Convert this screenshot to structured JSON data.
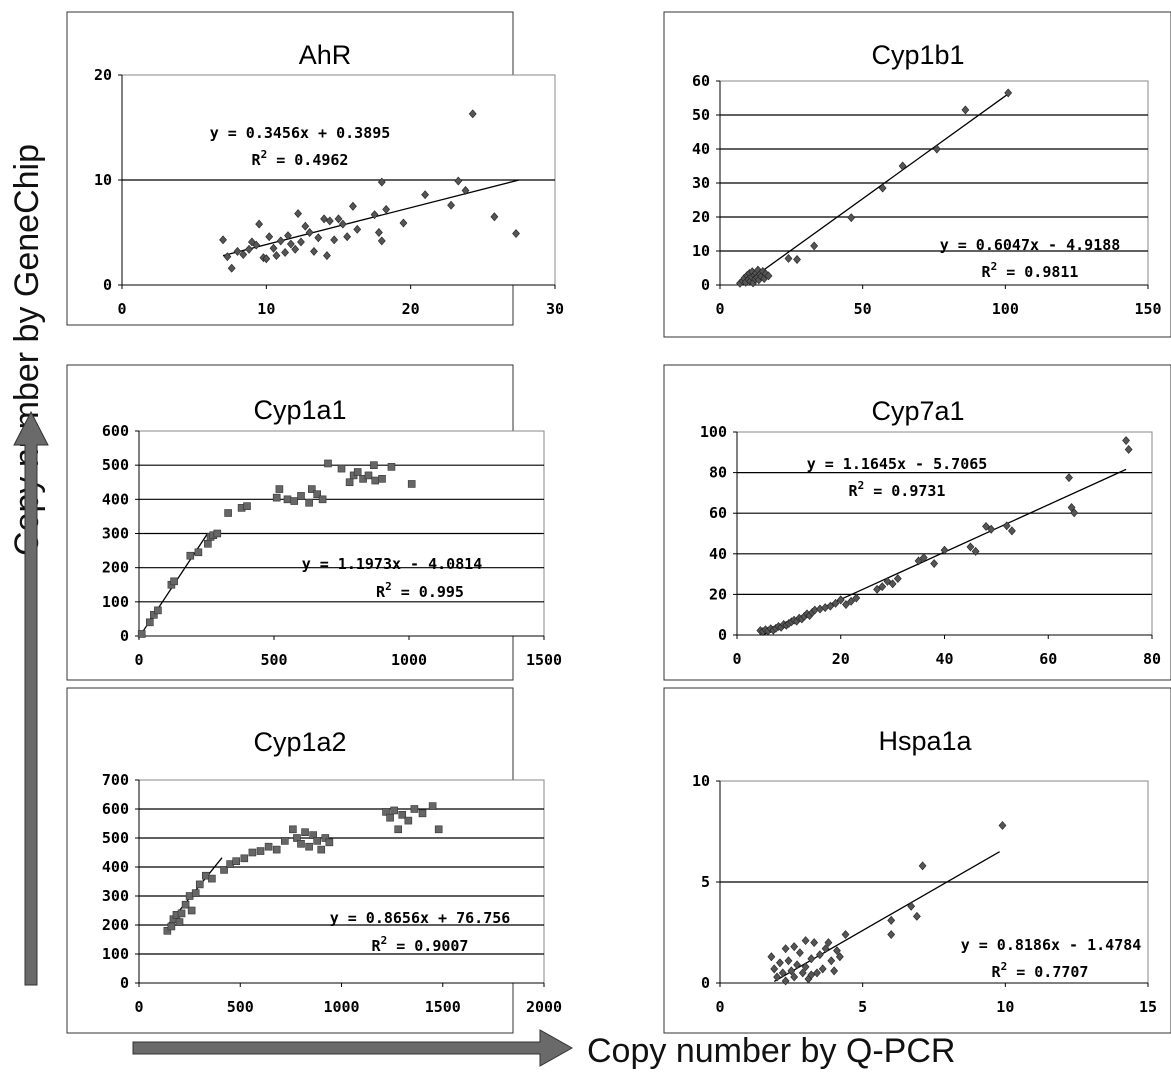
{
  "figure": {
    "y_label": "Copy number by GeneChip",
    "x_label": "Copy number by Q-PCR"
  },
  "chart_data": [
    {
      "id": "ahr",
      "type": "scatter",
      "title": "AhR",
      "xlim": [
        0,
        30
      ],
      "ylim": [
        0,
        20
      ],
      "x_ticks": [
        0,
        10,
        20,
        30
      ],
      "y_ticks": [
        0,
        10,
        20
      ],
      "grid_lines": [
        10
      ],
      "marker": "diamond",
      "equation": "y = 0.3456x + 0.3895",
      "r2_prefix": "R",
      "r2_sup": "2",
      "r2_value": " = 0.4962",
      "trend": [
        [
          7,
          2.8
        ],
        [
          27.5,
          10
        ]
      ],
      "points": [
        [
          7,
          4.3
        ],
        [
          7.3,
          2.7
        ],
        [
          7.6,
          1.6
        ],
        [
          8,
          3.2
        ],
        [
          8.4,
          2.9
        ],
        [
          8.8,
          3.4
        ],
        [
          9,
          4.1
        ],
        [
          9.3,
          3.8
        ],
        [
          9.5,
          5.8
        ],
        [
          9.8,
          2.6
        ],
        [
          10,
          2.5
        ],
        [
          10.2,
          4.6
        ],
        [
          10.5,
          3.5
        ],
        [
          10.7,
          2.8
        ],
        [
          11,
          4.2
        ],
        [
          11.3,
          3.1
        ],
        [
          11.5,
          4.7
        ],
        [
          11.7,
          3.9
        ],
        [
          12,
          3.4
        ],
        [
          12.2,
          6.8
        ],
        [
          12.4,
          4.1
        ],
        [
          12.7,
          5.6
        ],
        [
          13,
          5
        ],
        [
          13.3,
          3.2
        ],
        [
          13.6,
          4.5
        ],
        [
          14,
          6.3
        ],
        [
          14.2,
          2.8
        ],
        [
          14.4,
          6.1
        ],
        [
          14.7,
          4.3
        ],
        [
          15,
          6.3
        ],
        [
          15.3,
          5.8
        ],
        [
          15.6,
          4.6
        ],
        [
          16,
          7.5
        ],
        [
          16.3,
          5.3
        ],
        [
          17.5,
          6.7
        ],
        [
          17.8,
          5
        ],
        [
          18,
          9.8
        ],
        [
          18,
          4.2
        ],
        [
          18.3,
          7.2
        ],
        [
          19.5,
          5.9
        ],
        [
          21,
          8.6
        ],
        [
          22.8,
          7.6
        ],
        [
          23.3,
          9.9
        ],
        [
          23.8,
          9
        ],
        [
          24.3,
          16.3
        ],
        [
          25.8,
          6.5
        ],
        [
          27.3,
          4.9
        ]
      ]
    },
    {
      "id": "cyp1b1",
      "type": "scatter",
      "title": "Cyp1b1",
      "xlim": [
        0,
        150
      ],
      "ylim": [
        0,
        60
      ],
      "x_ticks": [
        0,
        50,
        100,
        150
      ],
      "y_ticks": [
        0,
        10,
        20,
        30,
        40,
        50,
        60
      ],
      "grid_lines": [
        10,
        20,
        30,
        40,
        50
      ],
      "marker": "diamond",
      "equation": "y = 0.6047x - 4.9188",
      "r2_prefix": "R",
      "r2_sup": "2",
      "r2_value": " = 0.9811",
      "trend": [
        [
          8,
          0
        ],
        [
          101,
          56.2
        ]
      ],
      "points": [
        [
          7,
          0.5
        ],
        [
          8,
          1.2
        ],
        [
          8.5,
          2
        ],
        [
          9,
          0.8
        ],
        [
          9.5,
          2.8
        ],
        [
          10,
          1.6
        ],
        [
          10.3,
          3.4
        ],
        [
          10.6,
          1.1
        ],
        [
          11,
          2.4
        ],
        [
          11.3,
          3.9
        ],
        [
          11.6,
          0.6
        ],
        [
          12,
          2.9
        ],
        [
          12.3,
          1.8
        ],
        [
          12.6,
          3.5
        ],
        [
          13,
          2.2
        ],
        [
          13.3,
          4.4
        ],
        [
          13.6,
          1.5
        ],
        [
          14,
          3.1
        ],
        [
          14.5,
          2.5
        ],
        [
          15,
          4
        ],
        [
          15.5,
          1.9
        ],
        [
          16,
          3.3
        ],
        [
          17,
          2.7
        ],
        [
          24,
          7.8
        ],
        [
          27,
          7.5
        ],
        [
          33,
          11.5
        ],
        [
          46,
          19.8
        ],
        [
          57,
          28.5
        ],
        [
          64,
          35
        ],
        [
          76,
          40
        ],
        [
          86,
          51.5
        ],
        [
          101,
          56.5
        ]
      ]
    },
    {
      "id": "cyp1a1",
      "type": "scatter",
      "title": "Cyp1a1",
      "xlim": [
        0,
        1500
      ],
      "ylim": [
        0,
        600
      ],
      "x_ticks": [
        0,
        500,
        1000,
        1500
      ],
      "y_ticks": [
        0,
        100,
        200,
        300,
        400,
        500,
        600
      ],
      "grid_lines": [
        100,
        200,
        300,
        400,
        500
      ],
      "marker": "square",
      "equation": "y = 1.1973x - 4.0814",
      "r2_prefix": "R",
      "r2_sup": "2",
      "r2_value": " = 0.995",
      "trend": [
        [
          5,
          2
        ],
        [
          255,
          301
        ]
      ],
      "points": [
        [
          10,
          6
        ],
        [
          40,
          40
        ],
        [
          55,
          62
        ],
        [
          70,
          75
        ],
        [
          120,
          150
        ],
        [
          130,
          160
        ],
        [
          190,
          235
        ],
        [
          220,
          245
        ],
        [
          255,
          270
        ],
        [
          265,
          290
        ],
        [
          275,
          295
        ],
        [
          290,
          300
        ],
        [
          330,
          360
        ],
        [
          380,
          375
        ],
        [
          400,
          380
        ],
        [
          510,
          405
        ],
        [
          520,
          430
        ],
        [
          550,
          400
        ],
        [
          575,
          395
        ],
        [
          600,
          410
        ],
        [
          630,
          390
        ],
        [
          640,
          430
        ],
        [
          660,
          415
        ],
        [
          680,
          400
        ],
        [
          780,
          450
        ],
        [
          795,
          470
        ],
        [
          810,
          480
        ],
        [
          830,
          460
        ],
        [
          850,
          470
        ],
        [
          875,
          455
        ],
        [
          900,
          460
        ],
        [
          935,
          495
        ],
        [
          1010,
          445
        ],
        [
          750,
          490
        ],
        [
          700,
          505
        ],
        [
          870,
          500
        ]
      ]
    },
    {
      "id": "cyp7a1",
      "type": "scatter",
      "title": "Cyp7a1",
      "xlim": [
        0,
        80
      ],
      "ylim": [
        0,
        100
      ],
      "x_ticks": [
        0,
        20,
        40,
        60,
        80
      ],
      "y_ticks": [
        0,
        20,
        40,
        60,
        80,
        100
      ],
      "grid_lines": [
        20,
        40,
        60,
        80
      ],
      "marker": "diamond",
      "equation": "y = 1.1645x - 5.7065",
      "r2_prefix": "R",
      "r2_sup": "2",
      "r2_value": " = 0.9731",
      "trend": [
        [
          5,
          0.1
        ],
        [
          75,
          81.6
        ]
      ],
      "points": [
        [
          4.5,
          2.2
        ],
        [
          5,
          1.7
        ],
        [
          5.5,
          2.6
        ],
        [
          6,
          2
        ],
        [
          6.5,
          3.1
        ],
        [
          7,
          2.4
        ],
        [
          7.5,
          3.3
        ],
        [
          8,
          4.2
        ],
        [
          8.5,
          3.8
        ],
        [
          9,
          5.2
        ],
        [
          9.5,
          4.8
        ],
        [
          10,
          5.7
        ],
        [
          10.5,
          6.5
        ],
        [
          11,
          7.3
        ],
        [
          11.5,
          6.8
        ],
        [
          12,
          8.3
        ],
        [
          12.5,
          7.9
        ],
        [
          13,
          9.2
        ],
        [
          13.5,
          10.4
        ],
        [
          14,
          9.6
        ],
        [
          14.5,
          11.1
        ],
        [
          15,
          12.3
        ],
        [
          16,
          12.8
        ],
        [
          17,
          13.5
        ],
        [
          18,
          14.2
        ],
        [
          19,
          15.6
        ],
        [
          20,
          17.3
        ],
        [
          21,
          15
        ],
        [
          22,
          16.6
        ],
        [
          23,
          18.2
        ],
        [
          27,
          22.5
        ],
        [
          28,
          23.8
        ],
        [
          29,
          26.4
        ],
        [
          30,
          25.2
        ],
        [
          31,
          27.8
        ],
        [
          35,
          36.5
        ],
        [
          36,
          38.1
        ],
        [
          38,
          35.2
        ],
        [
          40,
          41.8
        ],
        [
          45,
          43.4
        ],
        [
          46,
          41.2
        ],
        [
          48,
          53.5
        ],
        [
          49,
          52.1
        ],
        [
          52,
          53.8
        ],
        [
          53,
          51.3
        ],
        [
          64,
          77.5
        ],
        [
          64.5,
          62.8
        ],
        [
          65,
          60.2
        ],
        [
          75,
          95.8
        ],
        [
          75.5,
          91.4
        ]
      ]
    },
    {
      "id": "cyp1a2",
      "type": "scatter",
      "title": "Cyp1a2",
      "xlim": [
        0,
        2000
      ],
      "ylim": [
        0,
        700
      ],
      "x_ticks": [
        0,
        500,
        1000,
        1500,
        2000
      ],
      "y_ticks": [
        0,
        100,
        200,
        300,
        400,
        500,
        600,
        700
      ],
      "grid_lines": [
        100,
        200,
        300,
        400,
        500,
        600
      ],
      "marker": "square",
      "equation": "y = 0.8656x + 76.756",
      "r2_prefix": "R",
      "r2_sup": "2",
      "r2_value": " = 0.9007",
      "trend": [
        [
          140,
          198
        ],
        [
          410,
          432
        ]
      ],
      "points": [
        [
          140,
          180
        ],
        [
          160,
          195
        ],
        [
          170,
          220
        ],
        [
          185,
          235
        ],
        [
          200,
          210
        ],
        [
          210,
          240
        ],
        [
          230,
          270
        ],
        [
          250,
          300
        ],
        [
          260,
          250
        ],
        [
          280,
          310
        ],
        [
          300,
          340
        ],
        [
          330,
          370
        ],
        [
          360,
          360
        ],
        [
          420,
          390
        ],
        [
          450,
          410
        ],
        [
          480,
          420
        ],
        [
          520,
          430
        ],
        [
          560,
          450
        ],
        [
          600,
          455
        ],
        [
          640,
          470
        ],
        [
          680,
          460
        ],
        [
          720,
          490
        ],
        [
          760,
          530
        ],
        [
          780,
          500
        ],
        [
          800,
          480
        ],
        [
          820,
          520
        ],
        [
          840,
          470
        ],
        [
          860,
          510
        ],
        [
          880,
          490
        ],
        [
          900,
          460
        ],
        [
          920,
          500
        ],
        [
          940,
          485
        ],
        [
          1220,
          590
        ],
        [
          1240,
          570
        ],
        [
          1260,
          595
        ],
        [
          1280,
          530
        ],
        [
          1300,
          580
        ],
        [
          1330,
          560
        ],
        [
          1360,
          600
        ],
        [
          1400,
          585
        ],
        [
          1450,
          610
        ],
        [
          1480,
          530
        ]
      ]
    },
    {
      "id": "hspa1a",
      "type": "scatter",
      "title": "Hspa1a",
      "xlim": [
        0,
        15
      ],
      "ylim": [
        0,
        10
      ],
      "x_ticks": [
        0,
        5,
        10,
        15
      ],
      "y_ticks": [
        0,
        5,
        10
      ],
      "grid_lines": [
        5
      ],
      "marker": "diamond",
      "equation": "y = 0.8186x - 1.4784",
      "r2_prefix": "R",
      "r2_sup": "2",
      "r2_value": " = 0.7707",
      "trend": [
        [
          1.9,
          0.08
        ],
        [
          9.8,
          6.5
        ]
      ],
      "points": [
        [
          1.8,
          1.3
        ],
        [
          1.9,
          0.7
        ],
        [
          2,
          0.3
        ],
        [
          2.1,
          1
        ],
        [
          2.2,
          0.5
        ],
        [
          2.3,
          0.1
        ],
        [
          2.4,
          1.1
        ],
        [
          2.5,
          0.6
        ],
        [
          2.6,
          0.3
        ],
        [
          2.7,
          0.9
        ],
        [
          2.8,
          1.5
        ],
        [
          2.9,
          0.5
        ],
        [
          3,
          0.8
        ],
        [
          3.1,
          0.2
        ],
        [
          3.2,
          1.2
        ],
        [
          3.3,
          2
        ],
        [
          3.4,
          0.5
        ],
        [
          3.5,
          1.4
        ],
        [
          3.6,
          0.7
        ],
        [
          3.7,
          1.7
        ],
        [
          3.8,
          2
        ],
        [
          3.9,
          1.1
        ],
        [
          4,
          0.6
        ],
        [
          4.1,
          1.6
        ],
        [
          4.2,
          1.3
        ],
        [
          4.4,
          2.4
        ],
        [
          2.3,
          1.7
        ],
        [
          2.6,
          1.8
        ],
        [
          3,
          2.1
        ],
        [
          3.2,
          0.4
        ],
        [
          6,
          3.1
        ],
        [
          6,
          2.4
        ],
        [
          6.7,
          3.8
        ],
        [
          6.9,
          3.3
        ],
        [
          7.1,
          5.8
        ],
        [
          9.9,
          7.8
        ]
      ]
    }
  ]
}
